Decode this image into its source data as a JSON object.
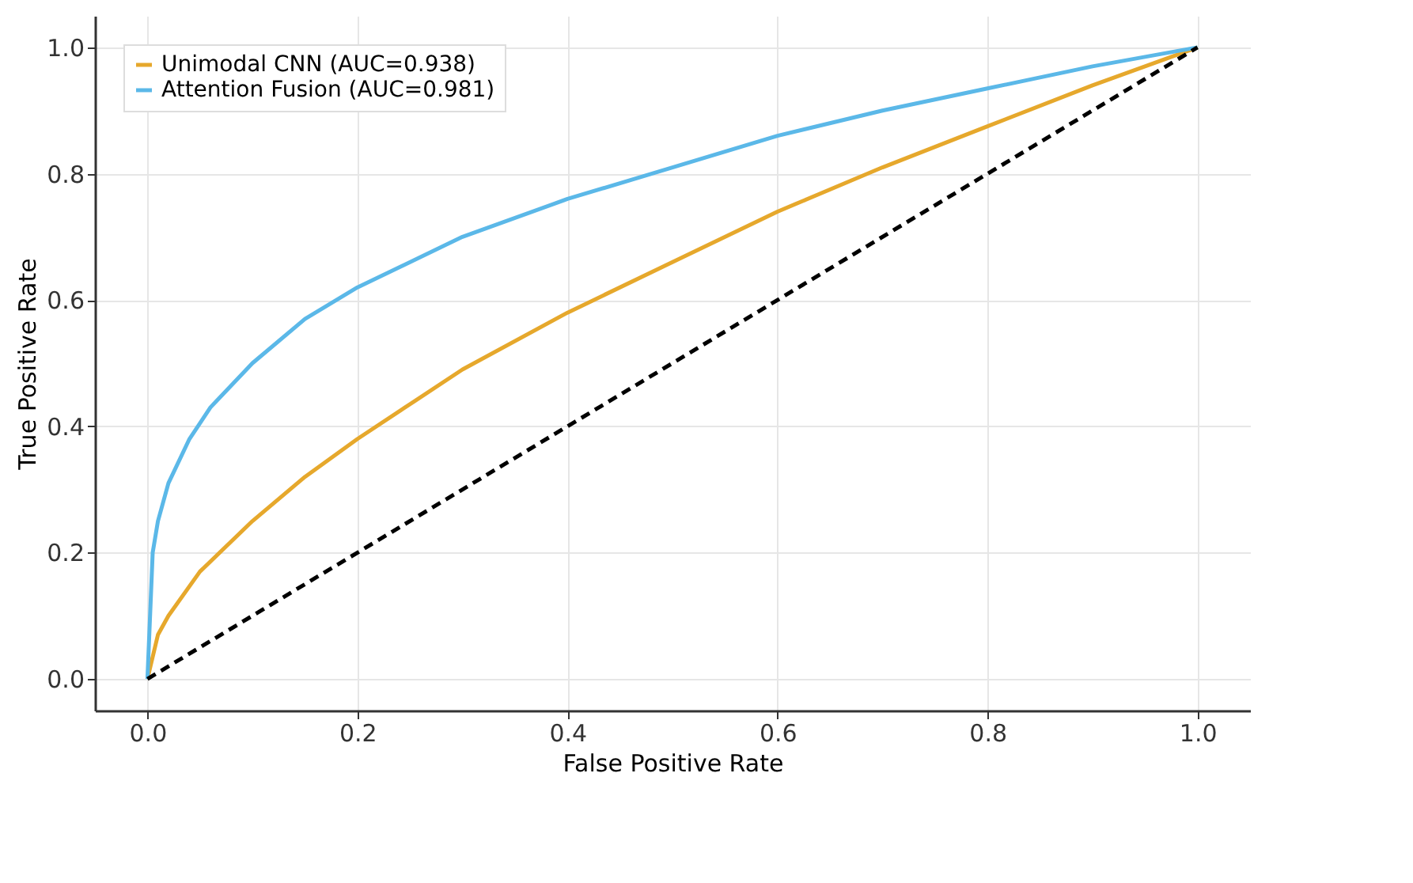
{
  "chart_data": {
    "type": "line",
    "xlabel": "False Positive Rate",
    "ylabel": "True Positive Rate",
    "xlim": [
      -0.05,
      1.05
    ],
    "ylim": [
      -0.05,
      1.05
    ],
    "xticks": [
      {
        "value": 0,
        "label": "0.0"
      },
      0.2,
      0.4,
      0.6,
      0.8,
      {
        "value": 1,
        "label": "1.0"
      }
    ],
    "yticks": [
      {
        "value": 0,
        "label": "0.0"
      },
      0.2,
      0.4,
      0.6,
      0.8,
      {
        "value": 1,
        "label": "1.0"
      }
    ],
    "grid": true,
    "legend": "top left",
    "marker": "none",
    "series": [
      {
        "name": "Unimodal CNN (AUC=0.938)",
        "color": "#e6a82c",
        "line_style": "solid",
        "x": [
          0,
          0.01,
          0.02,
          0.05,
          0.1,
          0.15,
          0.2,
          0.3,
          0.4,
          0.5,
          0.6,
          0.7,
          0.8,
          0.9,
          1.0
        ],
        "values": [
          0,
          0.07,
          0.1,
          0.17,
          0.25,
          0.32,
          0.38,
          0.49,
          0.58,
          0.66,
          0.74,
          0.81,
          0.875,
          0.94,
          1.0
        ]
      },
      {
        "name": "Attention Fusion (AUC=0.981)",
        "color": "#5bb8e8",
        "line_style": "solid",
        "x": [
          0,
          0.005,
          0.01,
          0.02,
          0.04,
          0.06,
          0.1,
          0.15,
          0.2,
          0.3,
          0.4,
          0.5,
          0.6,
          0.7,
          0.8,
          0.9,
          1.0
        ],
        "values": [
          0,
          0.2,
          0.25,
          0.31,
          0.38,
          0.43,
          0.5,
          0.57,
          0.62,
          0.7,
          0.76,
          0.81,
          0.86,
          0.9,
          0.935,
          0.97,
          1.0
        ]
      },
      {
        "color": "#000000",
        "line_style": "dashed",
        "x": [
          0,
          1
        ],
        "values": [
          0,
          1
        ]
      }
    ]
  }
}
